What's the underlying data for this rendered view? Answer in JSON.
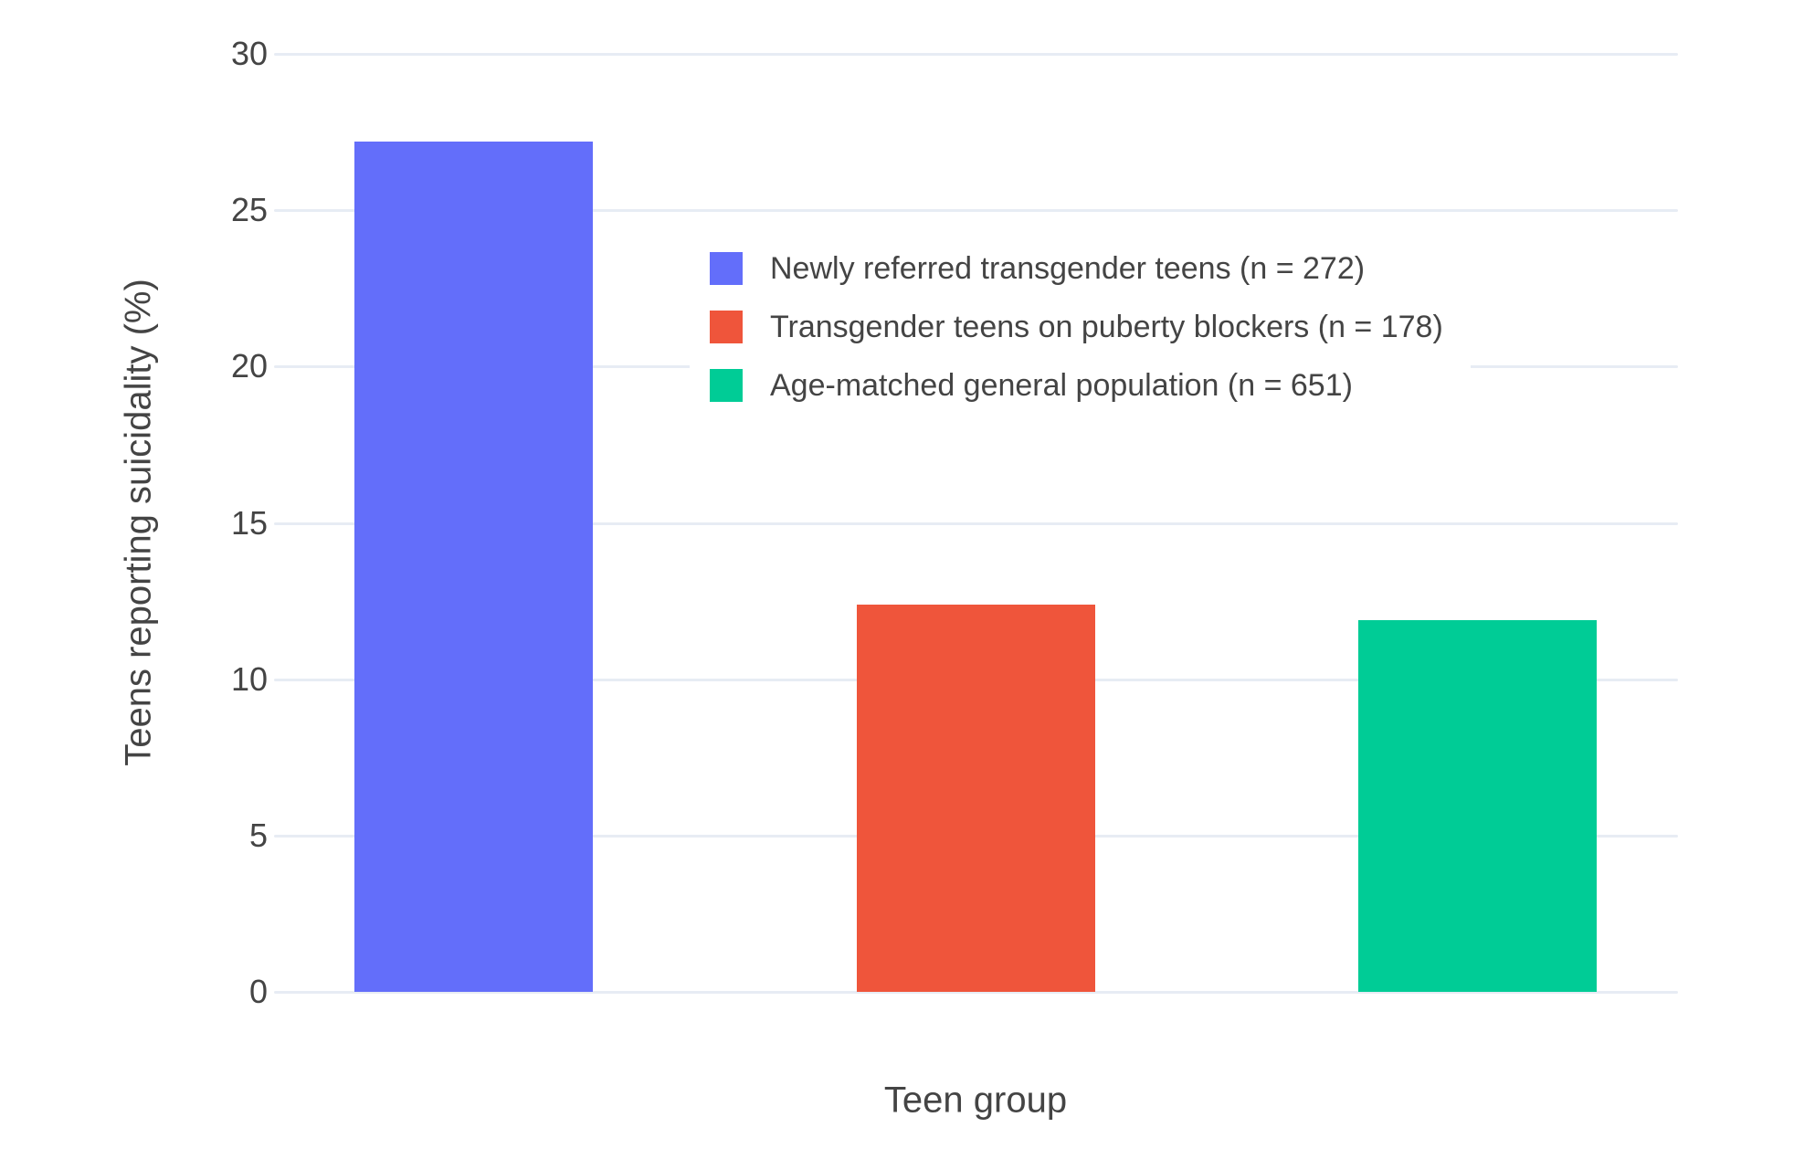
{
  "chart_data": {
    "type": "bar",
    "title": "",
    "xlabel": "Teen group",
    "ylabel": "Teens reporting suicidality (%)",
    "categories": [
      "Newly referred transgender teens (n = 272)",
      "Transgender teens on puberty blockers (n = 178)",
      "Age-matched general population (n = 651)"
    ],
    "series": [
      {
        "name": "Newly referred transgender teens (n = 272)",
        "values": [
          27.2
        ],
        "color": "#636EFA"
      },
      {
        "name": "Transgender teens on puberty blockers (n = 178)",
        "values": [
          12.4
        ],
        "color": "#EF553B"
      },
      {
        "name": "Age-matched general population (n = 651)",
        "values": [
          11.9
        ],
        "color": "#00CC96"
      }
    ],
    "ylim": [
      0,
      30
    ],
    "yticks": [
      0,
      5,
      10,
      15,
      20,
      25,
      30
    ],
    "grid": true,
    "legend_position": "inside-top-center",
    "colors": {
      "background": "#FFFFFF",
      "grid": "#E7ECF4",
      "text": "#444444"
    }
  }
}
